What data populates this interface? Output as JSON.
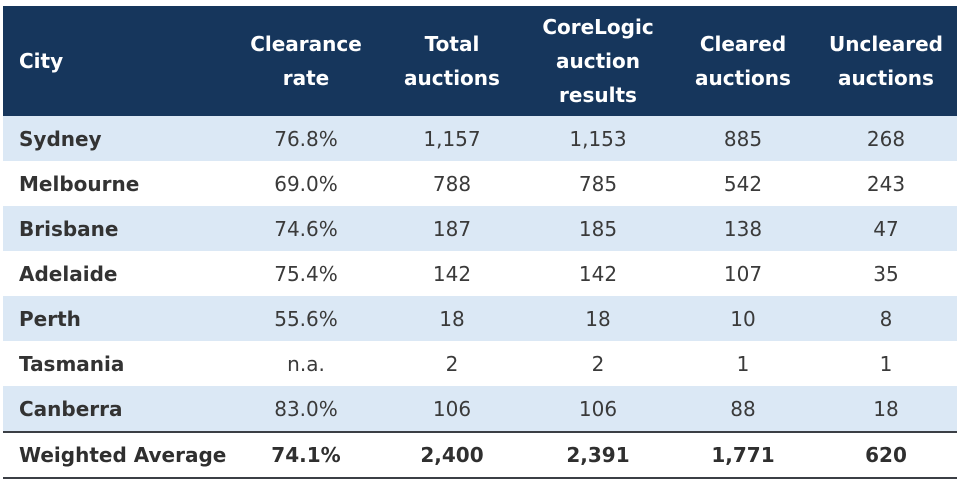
{
  "table": {
    "headers": [
      [
        "City"
      ],
      [
        "Clearance",
        "rate"
      ],
      [
        "Total",
        "auctions"
      ],
      [
        "CoreLogic",
        "auction",
        "results"
      ],
      [
        "Cleared",
        "auctions"
      ],
      [
        "Uncleared",
        "auctions"
      ]
    ],
    "rows": [
      [
        "Sydney",
        "76.8%",
        "1,157",
        "1,153",
        "885",
        "268"
      ],
      [
        "Melbourne",
        "69.0%",
        "788",
        "785",
        "542",
        "243"
      ],
      [
        "Brisbane",
        "74.6%",
        "187",
        "185",
        "138",
        "47"
      ],
      [
        "Adelaide",
        "75.4%",
        "142",
        "142",
        "107",
        "35"
      ],
      [
        "Perth",
        "55.6%",
        "18",
        "18",
        "10",
        "8"
      ],
      [
        "Tasmania",
        "n.a.",
        "2",
        "2",
        "1",
        "1"
      ],
      [
        "Canberra",
        "83.0%",
        "106",
        "106",
        "88",
        "18"
      ]
    ],
    "footer": [
      "Weighted Average",
      "74.1%",
      "2,400",
      "2,391",
      "1,771",
      "620"
    ]
  },
  "colors": {
    "header_bg": "#16365c",
    "header_text": "#ffffff",
    "stripe_bg": "#dbe8f5",
    "rule": "#3b3f45"
  }
}
